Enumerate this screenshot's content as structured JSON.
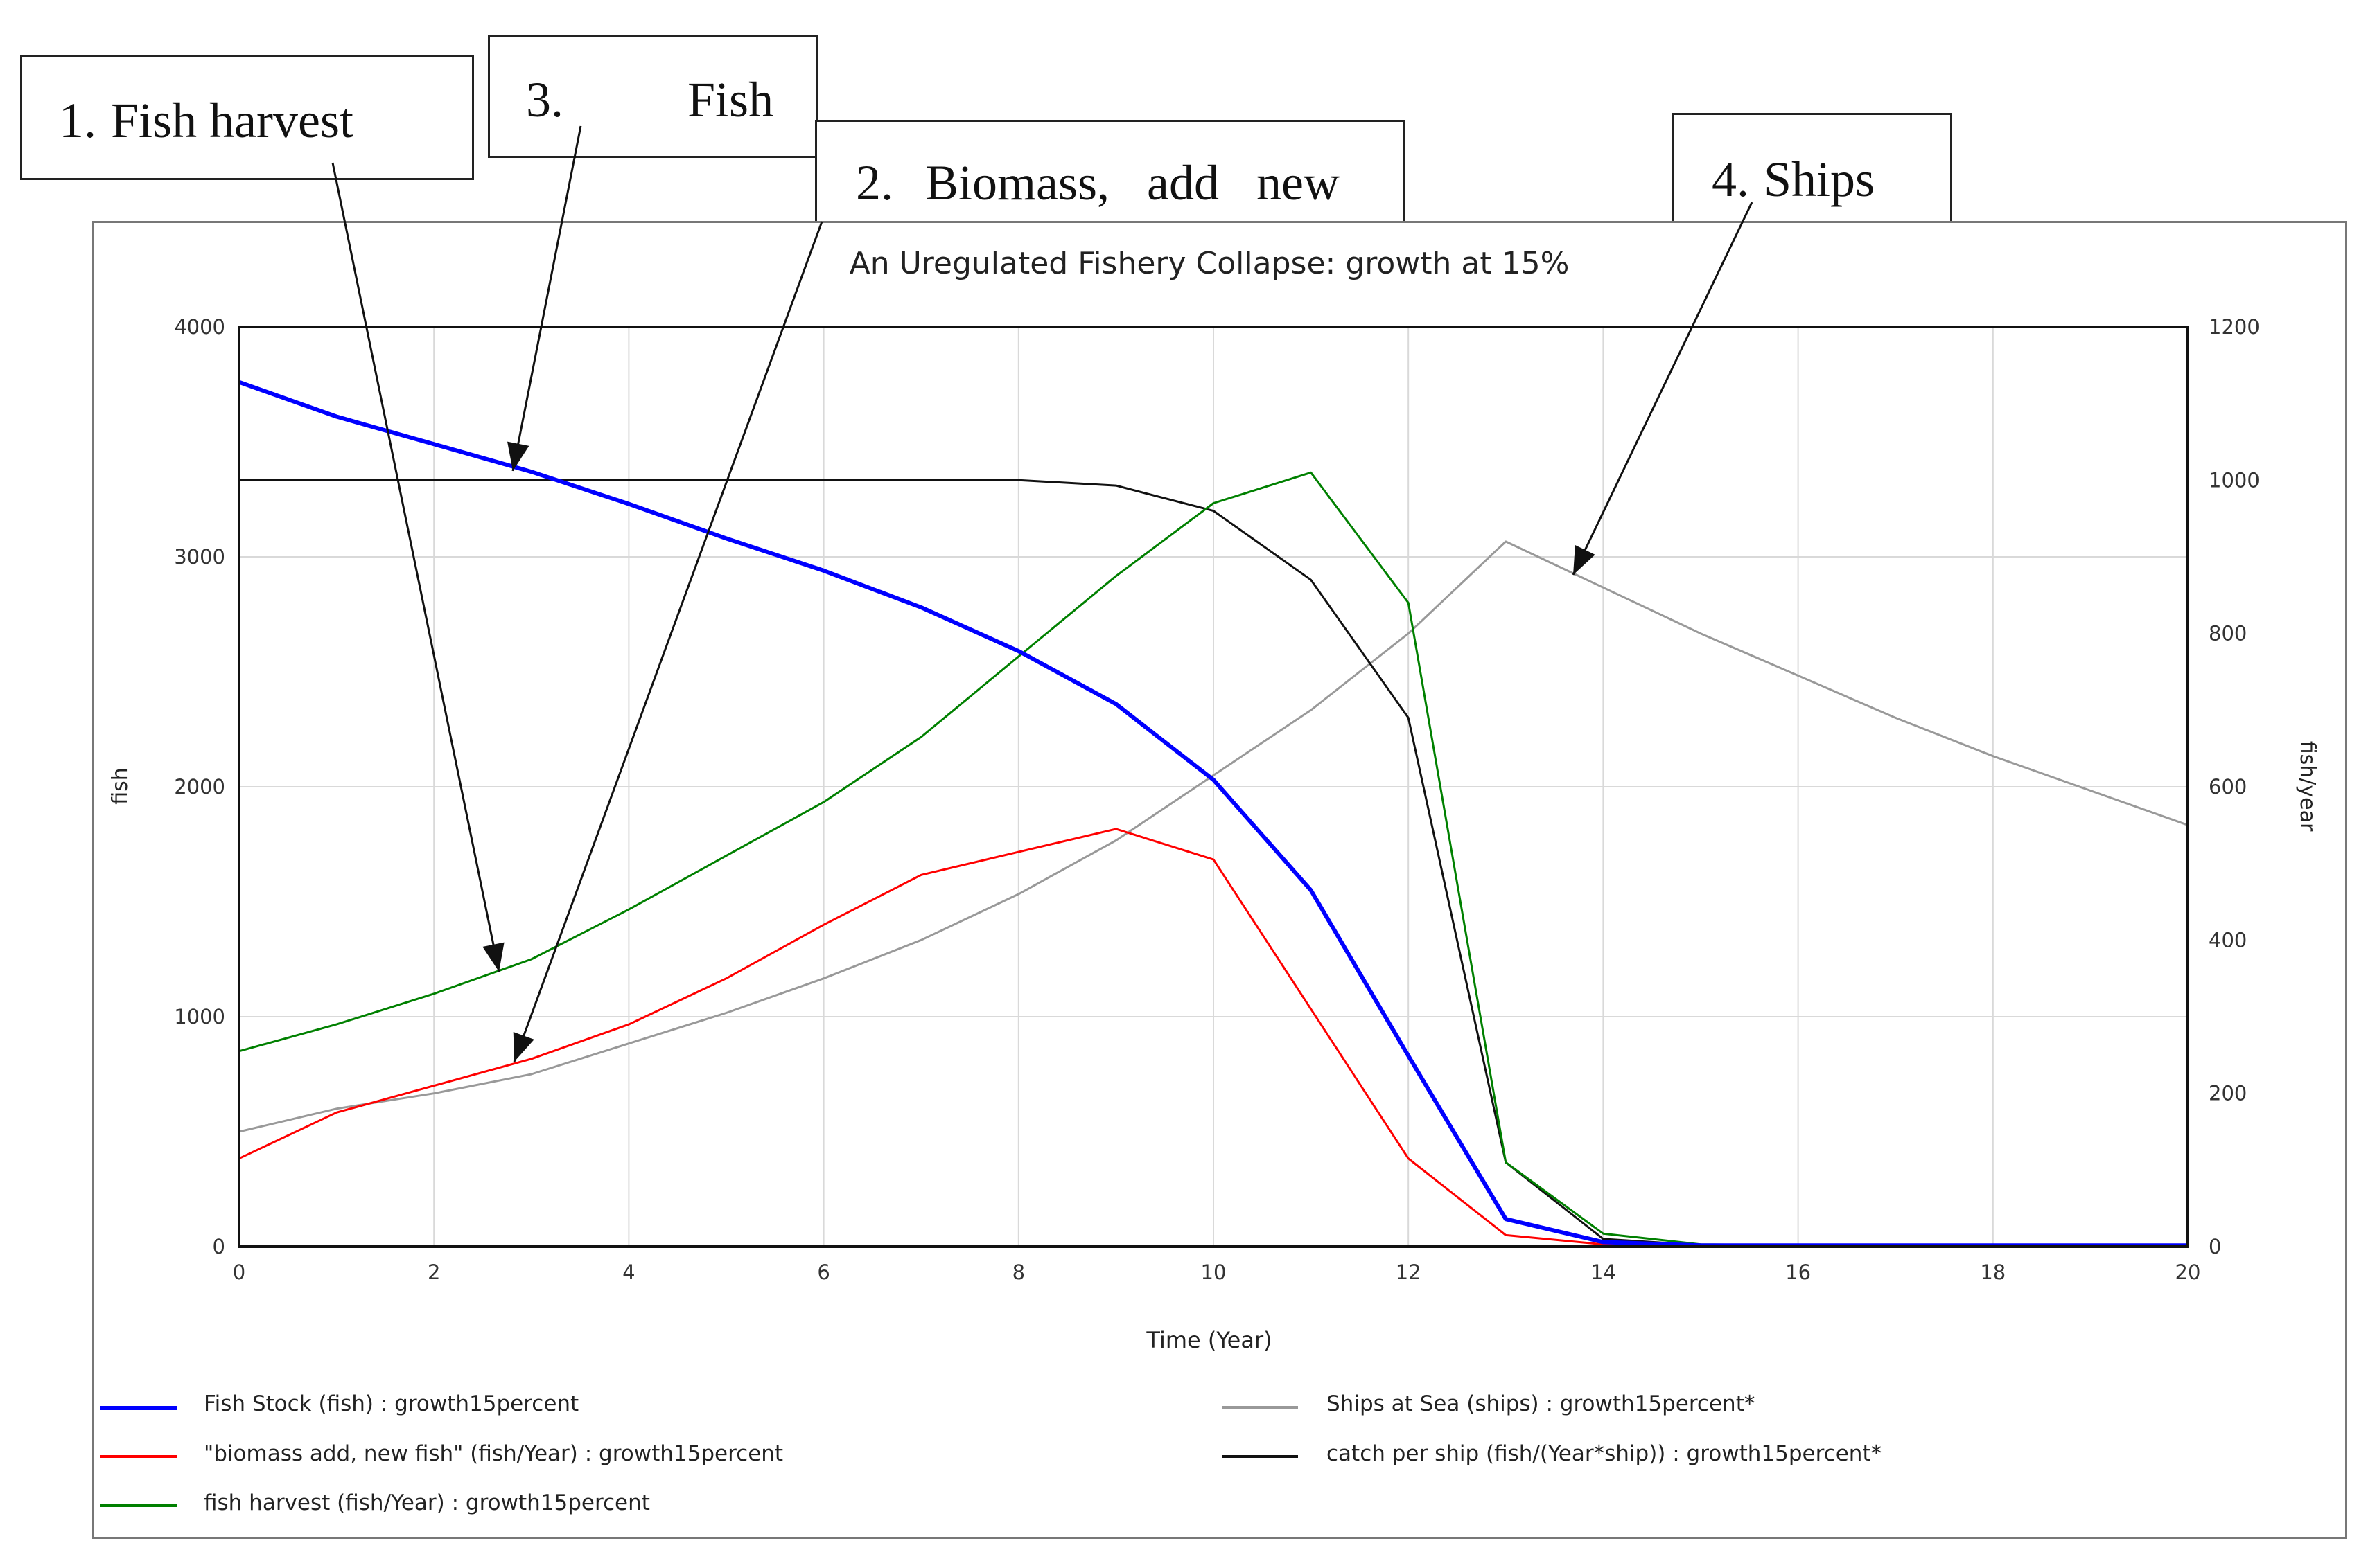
{
  "callouts": [
    {
      "num": "1.",
      "text": "Fish harvest"
    },
    {
      "num": "3.",
      "text": "Fish"
    },
    {
      "num": "2.",
      "text": "Biomass,   add   new"
    },
    {
      "num": "4.",
      "text": "Ships"
    }
  ],
  "chart_data": {
    "type": "line",
    "title": "An Uregulated Fishery Collapse: growth at 15%",
    "xlabel": "Time (Year)",
    "ylabel_left": "fish",
    "ylabel_right": "fish/year",
    "xlim": [
      0,
      20
    ],
    "ylim_left": [
      0,
      4000
    ],
    "ylim_right": [
      0,
      1200
    ],
    "x_ticks": [
      0,
      2,
      4,
      6,
      8,
      10,
      12,
      14,
      16,
      18,
      20
    ],
    "y_ticks_left": [
      0,
      1000,
      2000,
      3000,
      4000
    ],
    "y_ticks_right": [
      0,
      200,
      400,
      600,
      800,
      1000,
      1200
    ],
    "grid": true,
    "legend_position": "bottom",
    "x": [
      0,
      1,
      2,
      3,
      4,
      5,
      6,
      7,
      8,
      9,
      10,
      11,
      12,
      13,
      14,
      15,
      16,
      17,
      18,
      19,
      20
    ],
    "series": [
      {
        "name": "Fish Stock (fish) : growth15percent",
        "axis": "left",
        "color": "#0000ff",
        "width": 6,
        "values": [
          3760,
          3610,
          3490,
          3370,
          3230,
          3080,
          2940,
          2780,
          2590,
          2360,
          2030,
          1550,
          830,
          120,
          20,
          5,
          5,
          5,
          5,
          5,
          5
        ]
      },
      {
        "name": "\"biomass add, new fish\" (fish/Year) : growth15percent",
        "axis": "right",
        "color": "#ff0000",
        "width": 3,
        "values": [
          115,
          175,
          210,
          245,
          290,
          350,
          420,
          485,
          515,
          545,
          505,
          310,
          115,
          15,
          3,
          1,
          1,
          1,
          1,
          1,
          1
        ]
      },
      {
        "name": "fish harvest (fish/Year) : growth15percent",
        "axis": "right",
        "color": "#008000",
        "width": 3,
        "values": [
          255,
          290,
          330,
          375,
          440,
          510,
          580,
          665,
          770,
          875,
          970,
          1010,
          840,
          110,
          17,
          3,
          2,
          1,
          1,
          1,
          1
        ]
      },
      {
        "name": "Ships at Sea (ships) : growth15percent*",
        "axis": "right",
        "color": "#999999",
        "width": 3,
        "values": [
          150,
          180,
          200,
          225,
          265,
          305,
          350,
          400,
          460,
          530,
          615,
          700,
          800,
          920,
          860,
          800,
          745,
          690,
          640,
          595,
          550
        ]
      },
      {
        "name": "catch per ship (fish/(Year*ship)) : growth15percent*",
        "axis": "right",
        "color": "#111111",
        "width": 3,
        "values": [
          1000,
          1000,
          1000,
          1000,
          1000,
          1000,
          1000,
          1000,
          1000,
          993,
          960,
          870,
          690,
          110,
          10,
          2,
          1,
          1,
          1,
          1,
          1
        ]
      }
    ],
    "legend_left": [
      0,
      1,
      2
    ],
    "legend_right": [
      3,
      4
    ]
  }
}
